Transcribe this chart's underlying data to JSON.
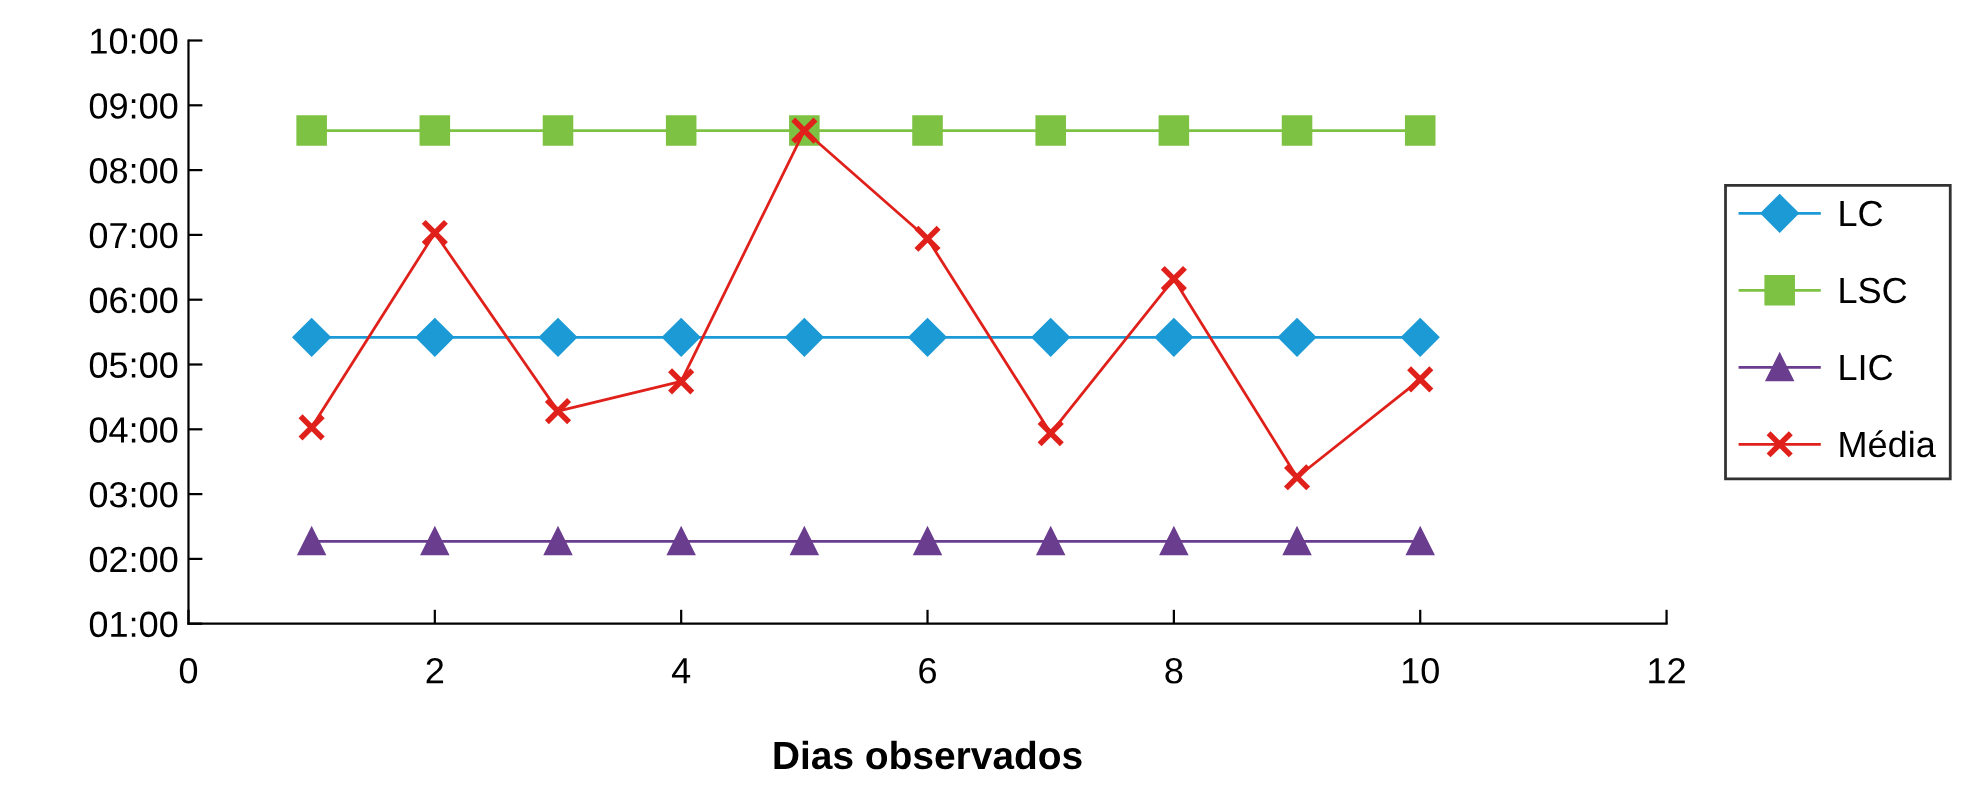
{
  "chart_data": {
    "type": "line",
    "xlabel": "Dias observados",
    "x": [
      1,
      2,
      3,
      4,
      5,
      6,
      7,
      8,
      9,
      10
    ],
    "series": [
      {
        "name": "LC",
        "color": "#1b9ad6",
        "marker": "diamond",
        "values": [
          5.42,
          5.42,
          5.42,
          5.42,
          5.42,
          5.42,
          5.42,
          5.42,
          5.42,
          5.42
        ]
      },
      {
        "name": "LSC",
        "color": "#7dc242",
        "marker": "square",
        "values": [
          8.61,
          8.61,
          8.61,
          8.61,
          8.61,
          8.61,
          8.61,
          8.61,
          8.61,
          8.61
        ]
      },
      {
        "name": "LIC",
        "color": "#6a3d8f",
        "marker": "triangle",
        "values": [
          2.27,
          2.27,
          2.27,
          2.27,
          2.27,
          2.27,
          2.27,
          2.27,
          2.27,
          2.27
        ]
      },
      {
        "name": "Média",
        "color": "#e0201b",
        "marker": "cross",
        "values": [
          4.03,
          7.03,
          4.28,
          4.74,
          8.61,
          6.94,
          3.94,
          6.32,
          3.26,
          4.77
        ]
      }
    ],
    "xlim": [
      0,
      12
    ],
    "xticks": [
      0,
      2,
      4,
      6,
      8,
      10,
      12
    ],
    "ylim": [
      1,
      10
    ],
    "yticks": [
      {
        "value": 1,
        "label": "01:00"
      },
      {
        "value": 2,
        "label": "02:00"
      },
      {
        "value": 3,
        "label": "03:00"
      },
      {
        "value": 4,
        "label": "04:00"
      },
      {
        "value": 5,
        "label": "05:00"
      },
      {
        "value": 6,
        "label": "06:00"
      },
      {
        "value": 7,
        "label": "07:00"
      },
      {
        "value": 8,
        "label": "08:00"
      },
      {
        "value": 9,
        "label": "09:00"
      },
      {
        "value": 10,
        "label": "10:00"
      }
    ],
    "grid": false,
    "legend": "right",
    "line_style": "solid"
  }
}
